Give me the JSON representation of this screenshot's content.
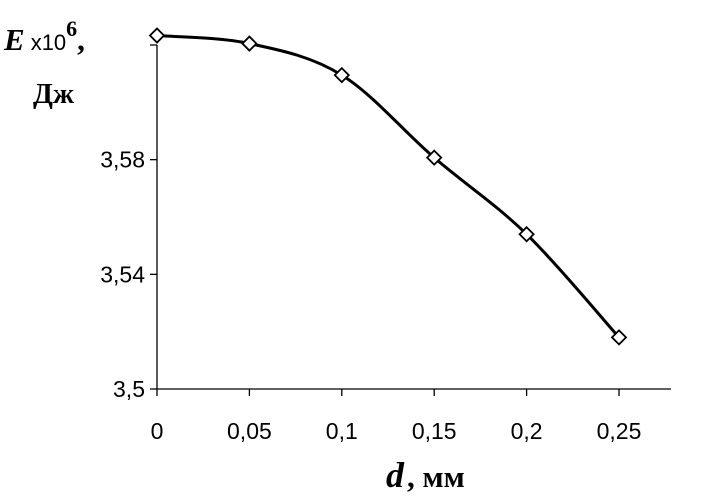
{
  "chart_data": {
    "type": "line",
    "x": [
      0,
      0.05,
      0.1,
      0.15,
      0.2,
      0.25
    ],
    "values": [
      3.6233,
      3.6205,
      3.6095,
      3.5807,
      3.554,
      3.518
    ],
    "x_tick_labels": [
      "0",
      "0,05",
      "0,1",
      "0,15",
      "0,2",
      "0,25"
    ],
    "y_tick_labels": [
      "3,5",
      "3,54",
      "3,58"
    ],
    "y_ticks": [
      3.5,
      3.54,
      3.58,
      3.62
    ],
    "xlim": [
      0,
      0.25
    ],
    "ylim": [
      3.5,
      3.62
    ],
    "ylabel": {
      "symbol": "E",
      "multiplier": "x10",
      "exponent": "6",
      "comma": ",",
      "unit": "Дж"
    },
    "xlabel": {
      "symbol": "d",
      "unit": ", мм"
    },
    "marker": "open-diamond",
    "grid": false,
    "line_color": "#000000",
    "marker_fill": "#ffffff"
  }
}
